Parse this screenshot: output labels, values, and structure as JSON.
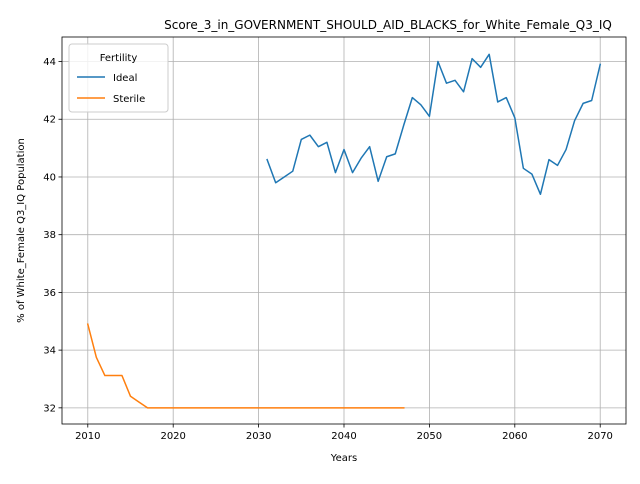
{
  "chart_data": {
    "type": "line",
    "title": "Score_3_in_GOVERNMENT_SHOULD_AID_BLACKS_for_White_Female_Q3_IQ",
    "xlabel": "Years",
    "ylabel": "% of White_Female Q3_IQ Population",
    "xlim": [
      2006.98,
      2073.02
    ],
    "ylim": [
      31.44,
      44.85
    ],
    "xticks": [
      2010,
      2020,
      2030,
      2040,
      2050,
      2060,
      2070
    ],
    "yticks": [
      32,
      34,
      36,
      38,
      40,
      42,
      44
    ],
    "grid": true,
    "legend": {
      "title": "Fertility",
      "placement": "top-left"
    },
    "series": [
      {
        "name": "Ideal",
        "color": "#1f77b4",
        "x": [
          2031,
          2032,
          2033,
          2034,
          2035,
          2036,
          2037,
          2038,
          2039,
          2040,
          2041,
          2042,
          2043,
          2044,
          2045,
          2046,
          2047,
          2048,
          2049,
          2050,
          2051,
          2052,
          2053,
          2054,
          2055,
          2056,
          2057,
          2058,
          2059,
          2060,
          2061,
          2062,
          2063,
          2064,
          2065,
          2066,
          2067,
          2068,
          2069,
          2070
        ],
        "y": [
          40.6,
          39.8,
          40.0,
          40.2,
          41.3,
          41.45,
          41.05,
          41.2,
          40.15,
          40.95,
          40.15,
          40.65,
          41.05,
          39.85,
          40.7,
          40.8,
          41.8,
          42.75,
          42.5,
          42.1,
          44.0,
          43.25,
          43.35,
          42.95,
          44.1,
          43.8,
          44.25,
          42.6,
          42.75,
          42.05,
          40.3,
          40.1,
          39.4,
          40.6,
          40.4,
          40.95,
          41.95,
          42.55,
          42.65,
          43.9
        ]
      },
      {
        "name": "Sterile",
        "color": "#ff7f0e",
        "x": [
          2010,
          2011,
          2012,
          2013,
          2014,
          2015,
          2016,
          2017,
          2018,
          2019,
          2020,
          2021,
          2022,
          2023,
          2024,
          2025,
          2026,
          2027,
          2028,
          2029,
          2030,
          2031,
          2032,
          2033,
          2034,
          2035,
          2036,
          2037,
          2038,
          2039,
          2040,
          2041,
          2042,
          2043,
          2044,
          2045,
          2046,
          2047
        ],
        "y": [
          34.9,
          33.75,
          33.12,
          33.12,
          33.12,
          32.4,
          32.2,
          32.0,
          32.0,
          32.0,
          32.0,
          32.0,
          32.0,
          32.0,
          32.0,
          32.0,
          32.0,
          32.0,
          32.0,
          32.0,
          32.0,
          32.0,
          32.0,
          32.0,
          32.0,
          32.0,
          32.0,
          32.0,
          32.0,
          32.0,
          32.0,
          32.0,
          32.0,
          32.0,
          32.0,
          32.0,
          32.0,
          32.0
        ]
      }
    ]
  }
}
